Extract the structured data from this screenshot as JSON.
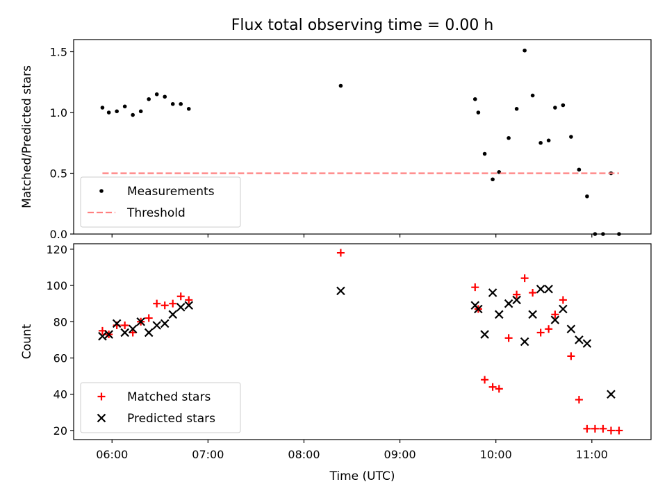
{
  "chart_data": [
    {
      "type": "scatter",
      "title": "Flux total observing time = 0.00 h",
      "xlabel": "",
      "ylabel": "Matched/Predicted stars",
      "xlim": [
        "05:36",
        "11:37"
      ],
      "ylim": [
        0,
        1.6
      ],
      "yticks": [
        0.0,
        0.5,
        1.0,
        1.5
      ],
      "ytick_labels": [
        "0.0",
        "0.5",
        "1.0",
        "1.5"
      ],
      "xticks": [
        "06:00",
        "07:00",
        "08:00",
        "09:00",
        "10:00",
        "11:00"
      ],
      "xtick_labels_visible": false,
      "legend_position": "lower-left",
      "series": [
        {
          "name": "Measurements",
          "kind": "scatter",
          "marker": "dot",
          "color": "#000000",
          "x": [
            "05:54",
            "05:58",
            "06:03",
            "06:08",
            "06:13",
            "06:18",
            "06:23",
            "06:28",
            "06:33",
            "06:38",
            "06:43",
            "06:48",
            "08:23",
            "09:47",
            "09:49",
            "09:53",
            "09:58",
            "10:02",
            "10:08",
            "10:13",
            "10:18",
            "10:23",
            "10:28",
            "10:33",
            "10:37",
            "10:42",
            "10:47",
            "10:52",
            "10:57",
            "11:02",
            "11:07",
            "11:12",
            "11:17"
          ],
          "y": [
            1.04,
            1.0,
            1.01,
            1.05,
            0.98,
            1.01,
            1.11,
            1.15,
            1.13,
            1.07,
            1.07,
            1.03,
            1.22,
            1.11,
            1.0,
            0.66,
            0.45,
            0.51,
            0.79,
            1.03,
            1.51,
            1.14,
            0.75,
            0.77,
            1.04,
            1.06,
            0.8,
            0.53,
            0.31,
            0.0,
            0.0,
            0.5,
            0.0
          ]
        },
        {
          "name": "Threshold",
          "kind": "line",
          "style": "dashed",
          "color": "#ff8080",
          "x": [
            "05:54",
            "11:17"
          ],
          "y": [
            0.5,
            0.5
          ]
        }
      ]
    },
    {
      "type": "scatter",
      "title": "",
      "xlabel": "Time (UTC)",
      "ylabel": "Count",
      "xlim": [
        "05:36",
        "11:37"
      ],
      "ylim": [
        15,
        123
      ],
      "yticks": [
        20,
        40,
        60,
        80,
        100,
        120
      ],
      "ytick_labels": [
        "20",
        "40",
        "60",
        "80",
        "100",
        "120"
      ],
      "xticks": [
        "06:00",
        "07:00",
        "08:00",
        "09:00",
        "10:00",
        "11:00"
      ],
      "xtick_labels": [
        "06:00",
        "07:00",
        "08:00",
        "09:00",
        "10:00",
        "11:00"
      ],
      "legend_position": "lower-left",
      "series": [
        {
          "name": "Matched stars",
          "kind": "scatter",
          "marker": "plus",
          "color": "#ff0000",
          "x": [
            "05:54",
            "05:58",
            "06:03",
            "06:08",
            "06:13",
            "06:18",
            "06:23",
            "06:28",
            "06:33",
            "06:38",
            "06:43",
            "06:48",
            "08:23",
            "09:47",
            "09:49",
            "09:53",
            "09:58",
            "10:02",
            "10:08",
            "10:13",
            "10:18",
            "10:23",
            "10:28",
            "10:33",
            "10:37",
            "10:42",
            "10:47",
            "10:52",
            "10:57",
            "11:02",
            "11:07",
            "11:12",
            "11:17"
          ],
          "y": [
            75,
            73,
            78,
            78,
            74,
            80,
            82,
            90,
            89,
            90,
            94,
            92,
            118,
            99,
            87,
            48,
            44,
            43,
            71,
            95,
            104,
            96,
            74,
            76,
            84,
            92,
            61,
            37,
            21,
            21,
            21,
            20,
            20
          ]
        },
        {
          "name": "Predicted stars",
          "kind": "scatter",
          "marker": "x",
          "color": "#000000",
          "x": [
            "05:54",
            "05:58",
            "06:03",
            "06:08",
            "06:13",
            "06:18",
            "06:23",
            "06:28",
            "06:33",
            "06:38",
            "06:43",
            "06:48",
            "08:23",
            "09:47",
            "09:49",
            "09:53",
            "09:58",
            "10:02",
            "10:08",
            "10:13",
            "10:18",
            "10:23",
            "10:28",
            "10:33",
            "10:37",
            "10:42",
            "10:47",
            "10:52",
            "10:57",
            "11:12"
          ],
          "y": [
            72,
            73,
            79,
            74,
            76,
            80,
            74,
            78,
            79,
            84,
            88,
            89,
            97,
            89,
            87,
            73,
            96,
            84,
            90,
            92,
            69,
            84,
            98,
            98,
            81,
            87,
            76,
            70,
            68,
            40
          ]
        }
      ]
    }
  ]
}
